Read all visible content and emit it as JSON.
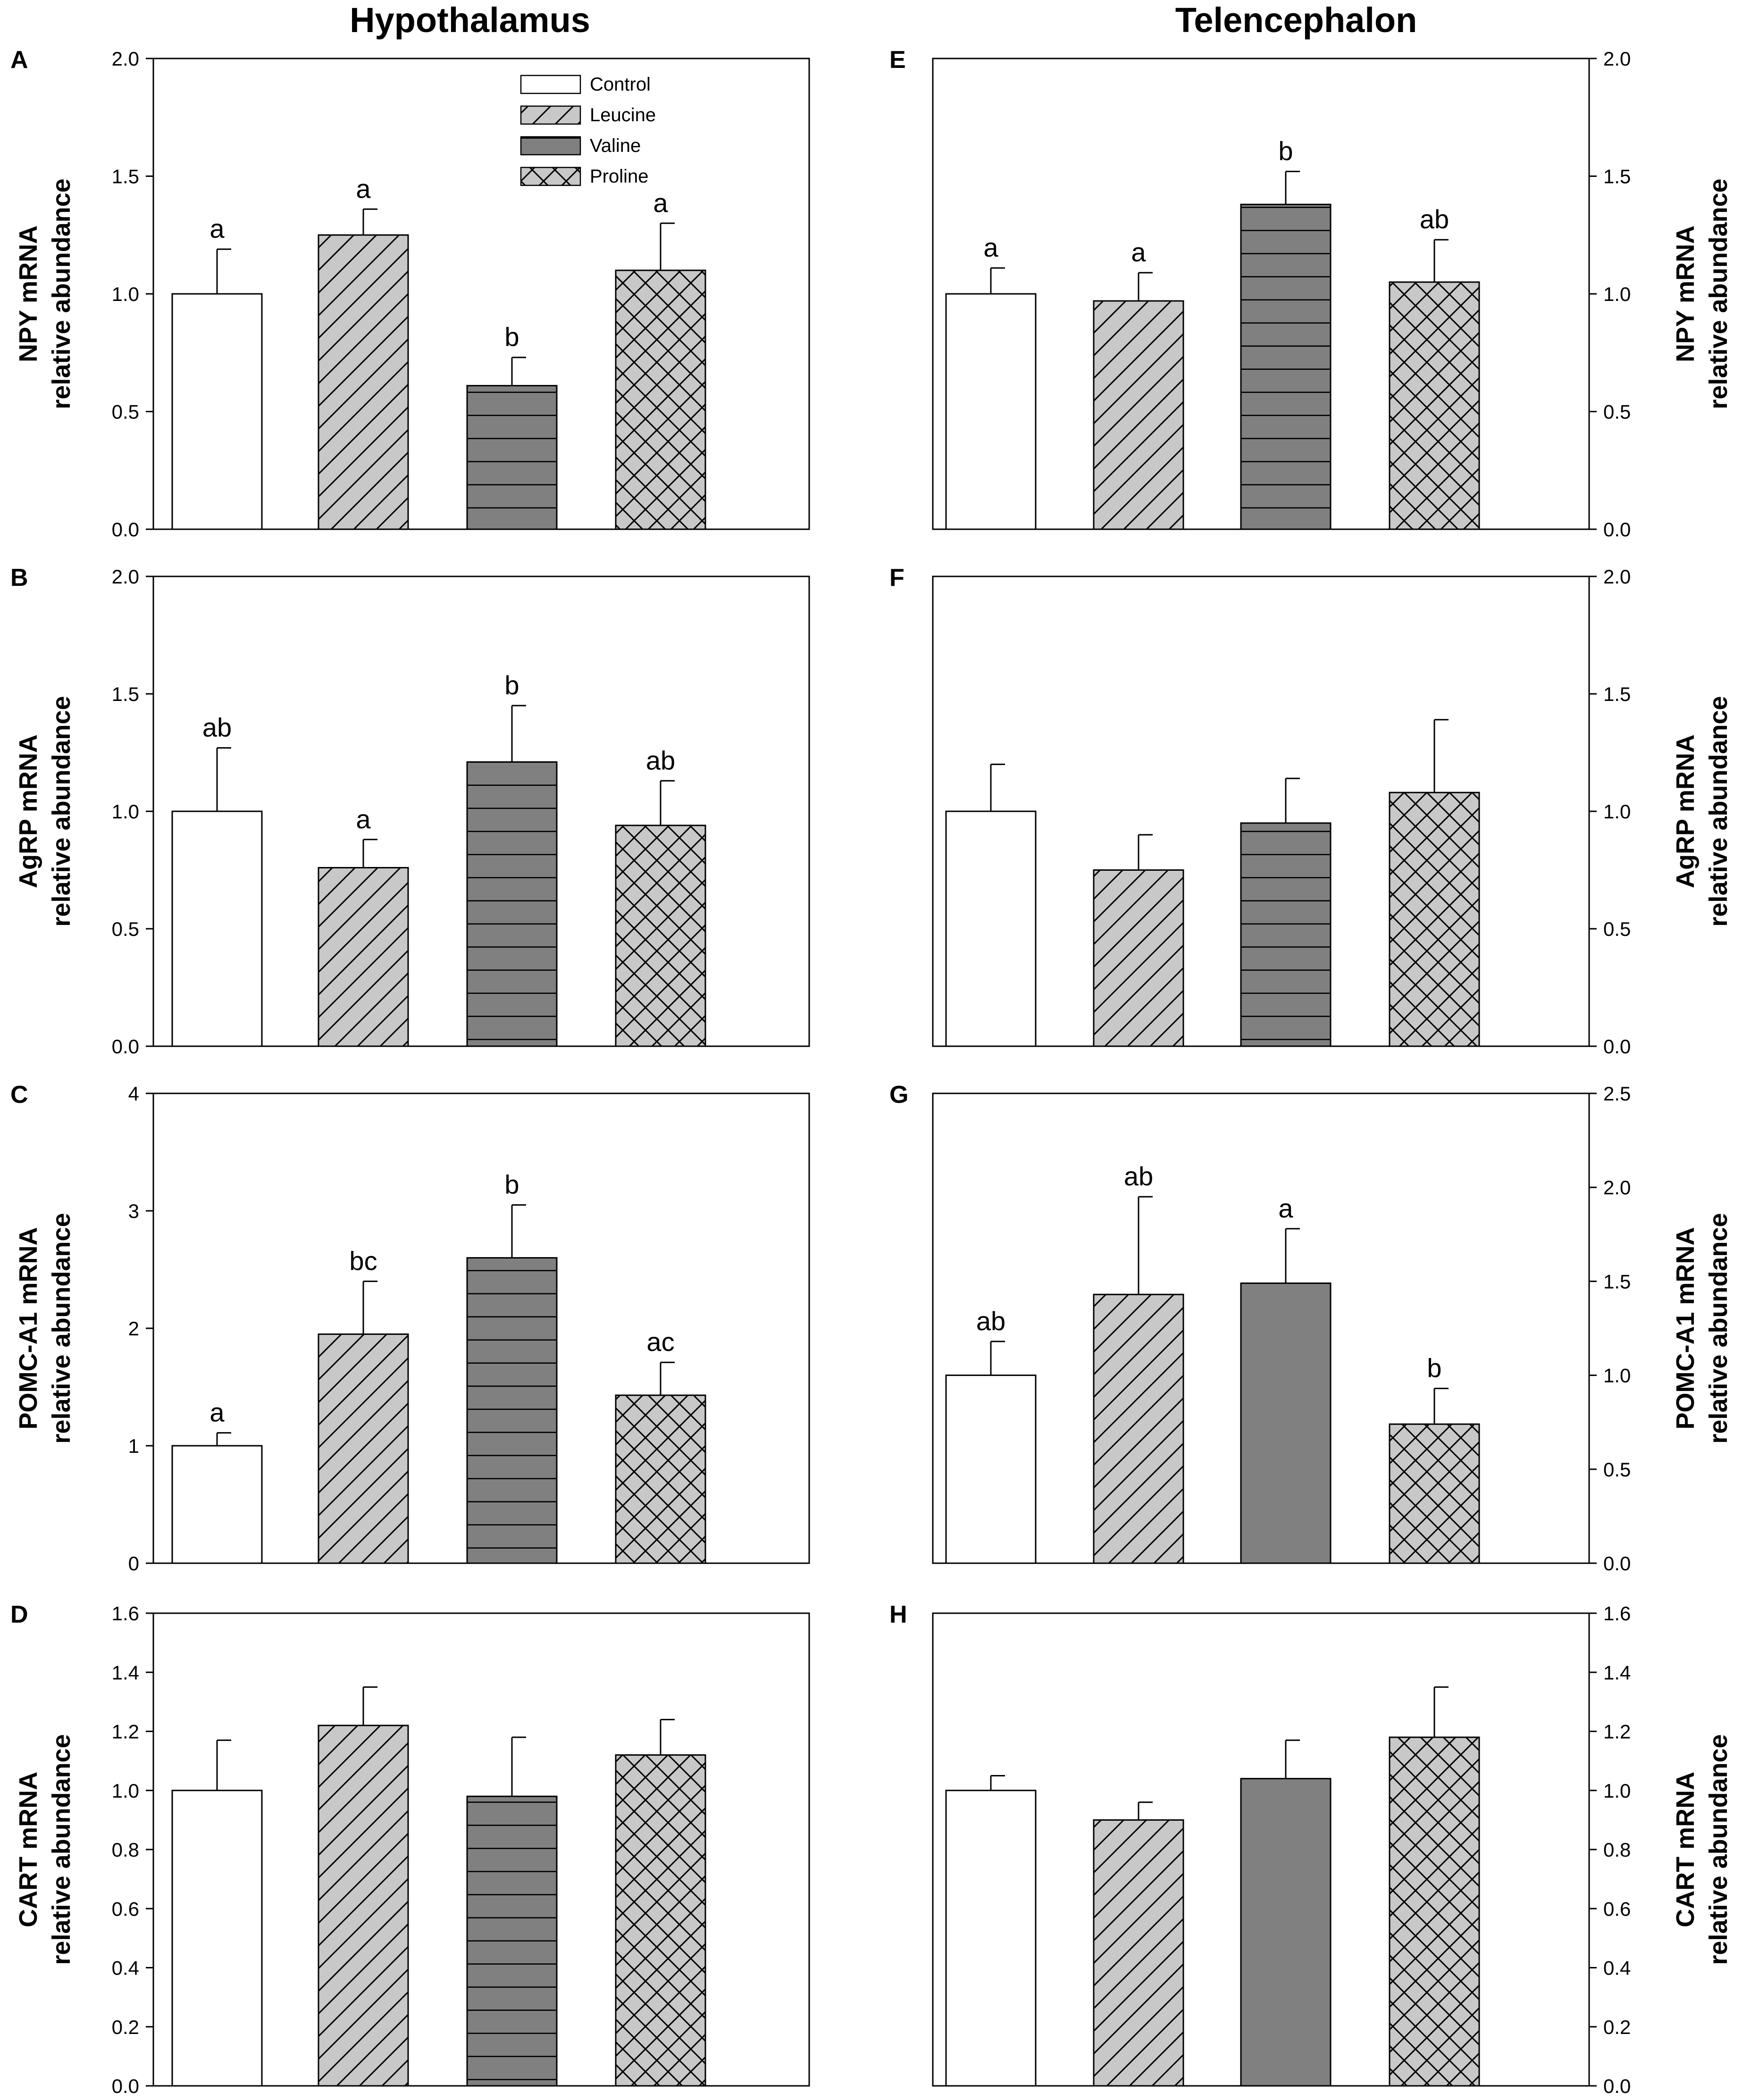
{
  "columns": [
    {
      "title": "Hypothalamus"
    },
    {
      "title": "Telencephalon"
    }
  ],
  "legend": {
    "entries": [
      "Control",
      "Leucine",
      "Valine",
      "Proline"
    ]
  },
  "colors": {
    "control": "#ffffff",
    "leucine": "#c8c8c8",
    "valine": "#808080",
    "proline": "#c8c8c8",
    "stroke": "#000000"
  },
  "chart_data": [
    {
      "type": "bar",
      "panel": "A",
      "title": "Hypothalamus",
      "ylabel_lines": [
        "NPY mRNA",
        "relative abundance"
      ],
      "categories": [
        "Control",
        "Leucine",
        "Valine",
        "Proline"
      ],
      "values": [
        1.0,
        1.25,
        0.61,
        1.1
      ],
      "errors": [
        0.19,
        0.11,
        0.12,
        0.2
      ],
      "sig_labels": [
        "a",
        "a",
        "b",
        "a"
      ],
      "ylim": [
        0,
        2.0
      ],
      "yticks": [
        "0.0",
        "0.5",
        "1.0",
        "1.5",
        "2.0"
      ],
      "valine_pattern": "hlines",
      "axis_side": "left",
      "legend": true
    },
    {
      "type": "bar",
      "panel": "B",
      "ylabel_lines": [
        "AgRP mRNA",
        "relative abundance"
      ],
      "categories": [
        "Control",
        "Leucine",
        "Valine",
        "Proline"
      ],
      "values": [
        1.0,
        0.76,
        1.21,
        0.94
      ],
      "errors": [
        0.27,
        0.12,
        0.24,
        0.19
      ],
      "sig_labels": [
        "ab",
        "a",
        "b",
        "ab"
      ],
      "ylim": [
        0,
        2.0
      ],
      "yticks": [
        "0.0",
        "0.5",
        "1.0",
        "1.5",
        "2.0"
      ],
      "valine_pattern": "hlines",
      "axis_side": "left"
    },
    {
      "type": "bar",
      "panel": "C",
      "ylabel_lines": [
        "POMC-A1 mRNA",
        "relative abundance"
      ],
      "categories": [
        "Control",
        "Leucine",
        "Valine",
        "Proline"
      ],
      "values": [
        1.0,
        1.95,
        2.6,
        1.43
      ],
      "errors": [
        0.11,
        0.45,
        0.45,
        0.28
      ],
      "sig_labels": [
        "a",
        "bc",
        "b",
        "ac"
      ],
      "ylim": [
        0,
        4
      ],
      "yticks": [
        "0",
        "1",
        "2",
        "3",
        "4"
      ],
      "valine_pattern": "hlines",
      "axis_side": "left"
    },
    {
      "type": "bar",
      "panel": "D",
      "ylabel_lines": [
        "CART mRNA",
        "relative abundance"
      ],
      "categories": [
        "Control",
        "Leucine",
        "Valine",
        "Proline"
      ],
      "values": [
        1.0,
        1.22,
        0.98,
        1.12
      ],
      "errors": [
        0.17,
        0.13,
        0.2,
        0.12
      ],
      "sig_labels": [
        "",
        "",
        "",
        ""
      ],
      "ylim": [
        0,
        1.6
      ],
      "yticks": [
        "0.0",
        "0.2",
        "0.4",
        "0.6",
        "0.8",
        "1.0",
        "1.2",
        "1.4",
        "1.6"
      ],
      "valine_pattern": "hlines",
      "axis_side": "left"
    },
    {
      "type": "bar",
      "panel": "E",
      "title": "Telencephalon",
      "ylabel_lines": [
        "NPY mRNA",
        "relative abundance"
      ],
      "categories": [
        "Control",
        "Leucine",
        "Valine",
        "Proline"
      ],
      "values": [
        1.0,
        0.97,
        1.38,
        1.05
      ],
      "errors": [
        0.11,
        0.12,
        0.14,
        0.18
      ],
      "sig_labels": [
        "a",
        "a",
        "b",
        "ab"
      ],
      "ylim": [
        0,
        2.0
      ],
      "yticks": [
        "0.0",
        "0.5",
        "1.0",
        "1.5",
        "2.0"
      ],
      "valine_pattern": "hlines",
      "axis_side": "right"
    },
    {
      "type": "bar",
      "panel": "F",
      "ylabel_lines": [
        "AgRP  mRNA",
        "relative abundance"
      ],
      "categories": [
        "Control",
        "Leucine",
        "Valine",
        "Proline"
      ],
      "values": [
        1.0,
        0.75,
        0.95,
        1.08
      ],
      "errors": [
        0.2,
        0.15,
        0.19,
        0.31
      ],
      "sig_labels": [
        "",
        "",
        "",
        ""
      ],
      "ylim": [
        0,
        2.0
      ],
      "yticks": [
        "0.0",
        "0.5",
        "1.0",
        "1.5",
        "2.0"
      ],
      "valine_pattern": "hlines",
      "axis_side": "right"
    },
    {
      "type": "bar",
      "panel": "G",
      "ylabel_lines": [
        "POMC-A1 mRNA",
        "relative abundance"
      ],
      "categories": [
        "Control",
        "Leucine",
        "Valine",
        "Proline"
      ],
      "values": [
        1.0,
        1.43,
        1.49,
        0.74
      ],
      "errors": [
        0.18,
        0.52,
        0.29,
        0.19
      ],
      "sig_labels": [
        "ab",
        "ab",
        "a",
        "b"
      ],
      "ylim": [
        0,
        2.5
      ],
      "yticks": [
        "0.0",
        "0.5",
        "1.0",
        "1.5",
        "2.0",
        "2.5"
      ],
      "valine_pattern": "solid",
      "axis_side": "right"
    },
    {
      "type": "bar",
      "panel": "H",
      "ylabel_lines": [
        "CART mRNA",
        "relative abundance"
      ],
      "categories": [
        "Control",
        "Leucine",
        "Valine",
        "Proline"
      ],
      "values": [
        1.0,
        0.9,
        1.04,
        1.18
      ],
      "errors": [
        0.05,
        0.06,
        0.13,
        0.17
      ],
      "sig_labels": [
        "",
        "",
        "",
        ""
      ],
      "ylim": [
        0,
        1.6
      ],
      "yticks": [
        "0.0",
        "0.2",
        "0.4",
        "0.6",
        "0.8",
        "1.0",
        "1.2",
        "1.4",
        "1.6"
      ],
      "valine_pattern": "solid",
      "axis_side": "right"
    }
  ]
}
